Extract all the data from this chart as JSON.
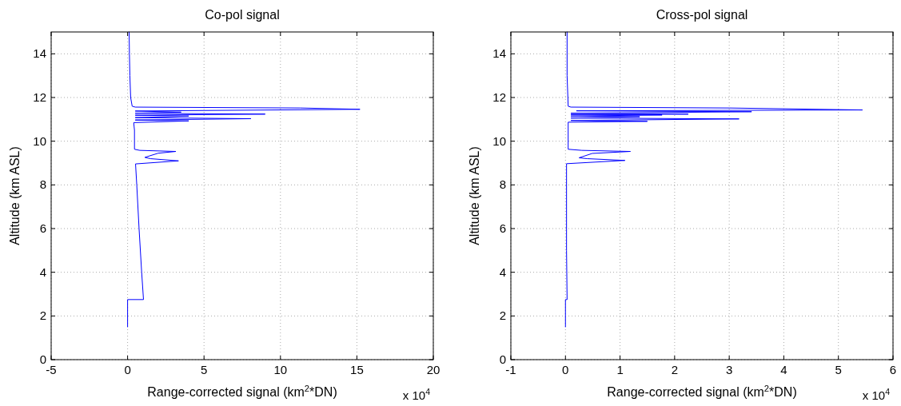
{
  "chart_data": [
    {
      "type": "line",
      "title": "Co-pol signal",
      "xlabel": "Range-corrected signal (km$^{2}$*DN)",
      "ylabel": "Altitude (km ASL)",
      "annotations": [
        "x 10$^{4}$"
      ],
      "xlim": [
        -5,
        20
      ],
      "xticks": [
        -5,
        0,
        5,
        10,
        15,
        20
      ],
      "ylim": [
        0,
        15
      ],
      "yticks": [
        0,
        2,
        4,
        6,
        8,
        10,
        12,
        14
      ],
      "grid": true,
      "line_style": "solid",
      "marker": "none",
      "series": [
        {
          "color": "#0000ff",
          "x": [
            0,
            0,
            1.04,
            0.92,
            0.75,
            0.6,
            0.52,
            3.33,
            1.5,
            1.13,
            2.0,
            3.16,
            0.8,
            0.45,
            0.45,
            0.45,
            0.4,
            4.0,
            0.5,
            8.07,
            0.5,
            4.0,
            0.5,
            9.0,
            0.5,
            3.5,
            0.5,
            15.2,
            11.3,
            0.5,
            0.3,
            0.2,
            0.15,
            0.12,
            0.1
          ],
          "values": [
            1.5,
            2.75,
            2.75,
            4,
            6,
            8,
            8.96,
            9.1,
            9.2,
            9.26,
            9.45,
            9.53,
            9.58,
            9.63,
            10,
            10.5,
            10.85,
            10.93,
            10.97,
            11.03,
            11.08,
            11.15,
            11.19,
            11.24,
            11.28,
            11.33,
            11.38,
            11.46,
            11.52,
            11.56,
            11.6,
            12,
            13,
            14,
            15
          ]
        }
      ]
    },
    {
      "type": "line",
      "title": "Cross-pol signal",
      "xlabel": "Range-corrected signal (km$^{2}$*DN)",
      "ylabel": "Altitude (km ASL)",
      "annotations": [
        "x 10$^{4}$"
      ],
      "xlim": [
        -1,
        6
      ],
      "xticks": [
        -1,
        0,
        1,
        2,
        3,
        4,
        5,
        6
      ],
      "ylim": [
        0,
        15
      ],
      "yticks": [
        0,
        2,
        4,
        6,
        8,
        10,
        12,
        14
      ],
      "grid": true,
      "line_style": "solid",
      "marker": "none",
      "series": [
        {
          "color": "#0000ff",
          "x": [
            0,
            0,
            0.03,
            0.02,
            0.02,
            1.09,
            0.4,
            0.25,
            0.49,
            1.19,
            0.3,
            0.05,
            0.05,
            0.05,
            1.5,
            0.1,
            3.18,
            0.1,
            1.36,
            0.1,
            1.77,
            0.1,
            2.25,
            0.1,
            3.41,
            0.2,
            5.44,
            3.0,
            0.1,
            0.05,
            0.03,
            0.03
          ],
          "values": [
            1.5,
            2.75,
            2.75,
            5,
            8.97,
            9.12,
            9.2,
            9.24,
            9.44,
            9.53,
            9.58,
            9.63,
            10.5,
            10.87,
            10.91,
            10.95,
            11.02,
            11.06,
            11.12,
            11.15,
            11.2,
            11.22,
            11.24,
            11.28,
            11.35,
            11.39,
            11.43,
            11.52,
            11.56,
            11.6,
            13,
            15
          ]
        }
      ]
    }
  ]
}
